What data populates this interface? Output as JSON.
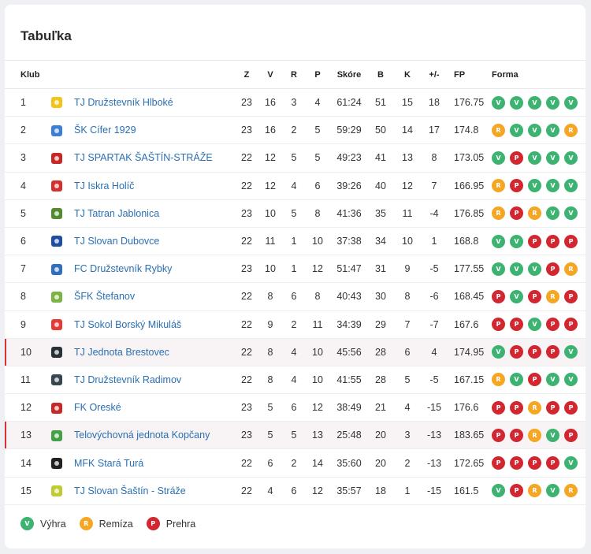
{
  "title": "Tabuľka",
  "colors": {
    "V": "#3cb371",
    "R": "#f5a623",
    "P": "#d22630",
    "link": "#2a6fb3",
    "highlight_bar": "#d9303a"
  },
  "header": {
    "club": "Klub",
    "Z": "Z",
    "V": "V",
    "R": "R",
    "P": "P",
    "score": "Skóre",
    "B": "B",
    "K": "K",
    "diff": "+/-",
    "FP": "FP",
    "form": "Forma"
  },
  "rows": [
    {
      "pos": "1",
      "team": "TJ Družstevník Hlboké",
      "crest_color": "#f0c419",
      "Z": "23",
      "V": "16",
      "R": "3",
      "P": "4",
      "score": "61:24",
      "B": "51",
      "K": "15",
      "diff": "18",
      "FP": "176.75",
      "form": [
        "V",
        "V",
        "V",
        "V",
        "V"
      ],
      "highlight": false
    },
    {
      "pos": "2",
      "team": "ŠK Cífer 1929",
      "crest_color": "#3b7dd8",
      "Z": "23",
      "V": "16",
      "R": "2",
      "P": "5",
      "score": "59:29",
      "B": "50",
      "K": "14",
      "diff": "17",
      "FP": "174.8",
      "form": [
        "R",
        "V",
        "V",
        "V",
        "R"
      ],
      "highlight": false
    },
    {
      "pos": "3",
      "team": "TJ SPARTAK ŠAŠTÍN-STRÁŽE",
      "crest_color": "#c62828",
      "Z": "22",
      "V": "12",
      "R": "5",
      "P": "5",
      "score": "49:23",
      "B": "41",
      "K": "13",
      "diff": "8",
      "FP": "173.05",
      "form": [
        "V",
        "P",
        "V",
        "V",
        "V"
      ],
      "highlight": false
    },
    {
      "pos": "4",
      "team": "TJ Iskra Holíč",
      "crest_color": "#d32f2f",
      "Z": "22",
      "V": "12",
      "R": "4",
      "P": "6",
      "score": "39:26",
      "B": "40",
      "K": "12",
      "diff": "7",
      "FP": "166.95",
      "form": [
        "R",
        "P",
        "V",
        "V",
        "V"
      ],
      "highlight": false
    },
    {
      "pos": "5",
      "team": "TJ Tatran Jablonica",
      "crest_color": "#558b2f",
      "Z": "23",
      "V": "10",
      "R": "5",
      "P": "8",
      "score": "41:36",
      "B": "35",
      "K": "11",
      "diff": "-4",
      "FP": "176.85",
      "form": [
        "R",
        "P",
        "R",
        "V",
        "V"
      ],
      "highlight": false
    },
    {
      "pos": "6",
      "team": "TJ Slovan Dubovce",
      "crest_color": "#1e4fa3",
      "Z": "22",
      "V": "11",
      "R": "1",
      "P": "10",
      "score": "37:38",
      "B": "34",
      "K": "10",
      "diff": "1",
      "FP": "168.8",
      "form": [
        "V",
        "V",
        "P",
        "P",
        "P"
      ],
      "highlight": false
    },
    {
      "pos": "7",
      "team": "FC Družstevník Rybky",
      "crest_color": "#2f6fbf",
      "Z": "23",
      "V": "10",
      "R": "1",
      "P": "12",
      "score": "51:47",
      "B": "31",
      "K": "9",
      "diff": "-5",
      "FP": "177.55",
      "form": [
        "V",
        "V",
        "V",
        "P",
        "R"
      ],
      "highlight": false
    },
    {
      "pos": "8",
      "team": "ŠFK Štefanov",
      "crest_color": "#7cb342",
      "Z": "22",
      "V": "8",
      "R": "6",
      "P": "8",
      "score": "40:43",
      "B": "30",
      "K": "8",
      "diff": "-6",
      "FP": "168.45",
      "form": [
        "P",
        "V",
        "P",
        "R",
        "P"
      ],
      "highlight": false
    },
    {
      "pos": "9",
      "team": "TJ Sokol Borský Mikuláš",
      "crest_color": "#e53935",
      "Z": "22",
      "V": "9",
      "R": "2",
      "P": "11",
      "score": "34:39",
      "B": "29",
      "K": "7",
      "diff": "-7",
      "FP": "167.6",
      "form": [
        "P",
        "P",
        "V",
        "P",
        "P"
      ],
      "highlight": false
    },
    {
      "pos": "10",
      "team": "TJ Jednota Brestovec",
      "crest_color": "#263238",
      "Z": "22",
      "V": "8",
      "R": "4",
      "P": "10",
      "score": "45:56",
      "B": "28",
      "K": "6",
      "diff": "4",
      "FP": "174.95",
      "form": [
        "V",
        "P",
        "P",
        "P",
        "V"
      ],
      "highlight": true
    },
    {
      "pos": "11",
      "team": "TJ Družstevník Radimov",
      "crest_color": "#37474f",
      "Z": "22",
      "V": "8",
      "R": "4",
      "P": "10",
      "score": "41:55",
      "B": "28",
      "K": "5",
      "diff": "-5",
      "FP": "167.15",
      "form": [
        "R",
        "V",
        "P",
        "V",
        "V"
      ],
      "highlight": false
    },
    {
      "pos": "12",
      "team": "FK Oreské",
      "crest_color": "#c62828",
      "Z": "23",
      "V": "5",
      "R": "6",
      "P": "12",
      "score": "38:49",
      "B": "21",
      "K": "4",
      "diff": "-15",
      "FP": "176.6",
      "form": [
        "P",
        "P",
        "R",
        "P",
        "P"
      ],
      "highlight": false
    },
    {
      "pos": "13",
      "team": "Telovýchovná jednota Kopčany",
      "crest_color": "#43a047",
      "Z": "23",
      "V": "5",
      "R": "5",
      "P": "13",
      "score": "25:48",
      "B": "20",
      "K": "3",
      "diff": "-13",
      "FP": "183.65",
      "form": [
        "P",
        "P",
        "R",
        "V",
        "P"
      ],
      "highlight": true
    },
    {
      "pos": "14",
      "team": "MFK Stará Turá",
      "crest_color": "#212121",
      "Z": "22",
      "V": "6",
      "R": "2",
      "P": "14",
      "score": "35:60",
      "B": "20",
      "K": "2",
      "diff": "-13",
      "FP": "172.65",
      "form": [
        "P",
        "P",
        "P",
        "P",
        "V"
      ],
      "highlight": false
    },
    {
      "pos": "15",
      "team": "TJ Slovan Šaštín - Stráže",
      "crest_color": "#c0ca33",
      "Z": "22",
      "V": "4",
      "R": "6",
      "P": "12",
      "score": "35:57",
      "B": "18",
      "K": "1",
      "diff": "-15",
      "FP": "161.5",
      "form": [
        "V",
        "P",
        "R",
        "V",
        "R"
      ],
      "highlight": false
    }
  ],
  "legend": [
    {
      "code": "V",
      "label": "Výhra"
    },
    {
      "code": "R",
      "label": "Remíza"
    },
    {
      "code": "P",
      "label": "Prehra"
    }
  ]
}
